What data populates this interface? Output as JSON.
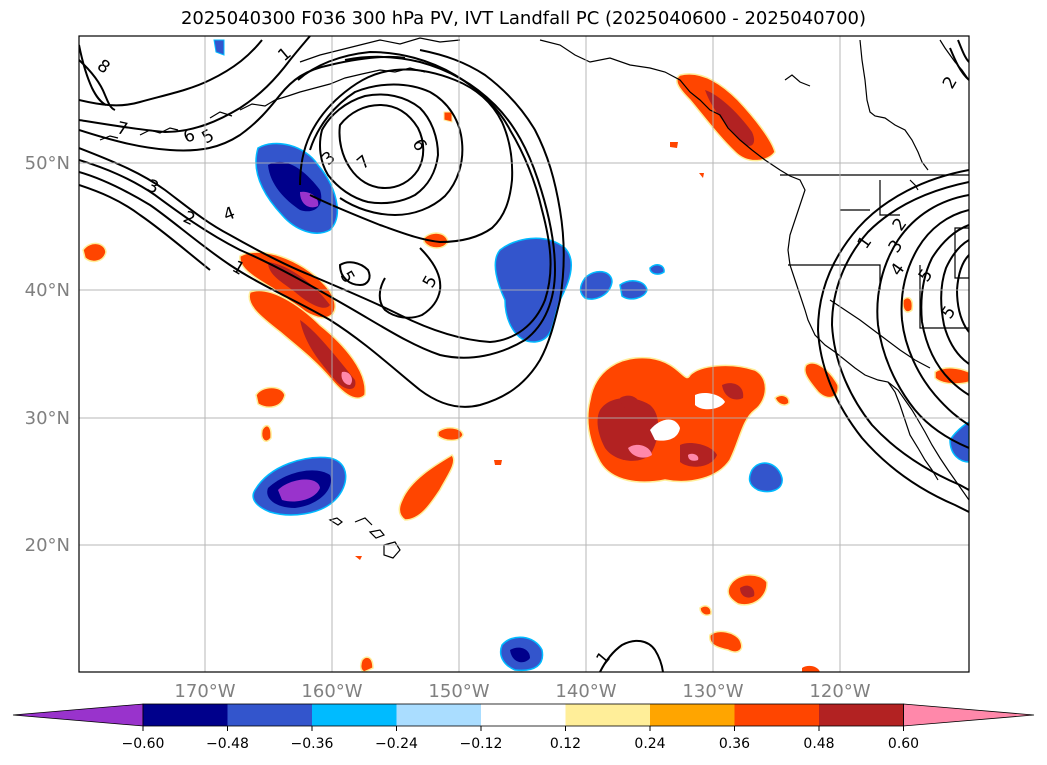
{
  "title": "2025040300 F036 300 hPa PV, IVT Landfall PC (2025040600 - 2025040700)",
  "lat_labels": [
    "50°N",
    "40°N",
    "30°N",
    "20°N"
  ],
  "lon_labels": [
    "170°W",
    "160°W",
    "150°W",
    "140°W",
    "130°W",
    "120°W"
  ],
  "colorbar": {
    "colors": [
      "#9933cc",
      "#00008b",
      "#3355cc",
      "#00bbff",
      "#aaddff",
      "#ffffff",
      "#ffee99",
      "#ffa500",
      "#ff4500",
      "#b22222",
      "#ff88aa"
    ],
    "tick_labels": [
      "−0.60",
      "−0.48",
      "−0.36",
      "−0.24",
      "−0.12",
      "0.12",
      "0.24",
      "0.36",
      "0.48",
      "0.60"
    ]
  },
  "contour_labels": [
    "8",
    "7",
    "6",
    "5",
    "3",
    "2",
    "4",
    "1",
    "6",
    "3",
    "7",
    "5",
    "5",
    "1",
    "2",
    "3",
    "4",
    "5",
    "5",
    "1",
    "1",
    "2"
  ],
  "chart_data": {
    "type": "map",
    "projection": "PlateCarree",
    "lon_range": [
      -180,
      -110
    ],
    "lat_range": [
      10,
      60
    ],
    "fill_variable": "IVT Landfall PC",
    "contour_variable": "300 hPa PV",
    "contour_levels": [
      1,
      2,
      3,
      4,
      5,
      6,
      7,
      8
    ],
    "colorbar_levels": [
      -0.6,
      -0.48,
      -0.36,
      -0.24,
      -0.12,
      0.12,
      0.24,
      0.36,
      0.48,
      0.6
    ],
    "colorbar_extend": "both",
    "gridlines": true
  }
}
